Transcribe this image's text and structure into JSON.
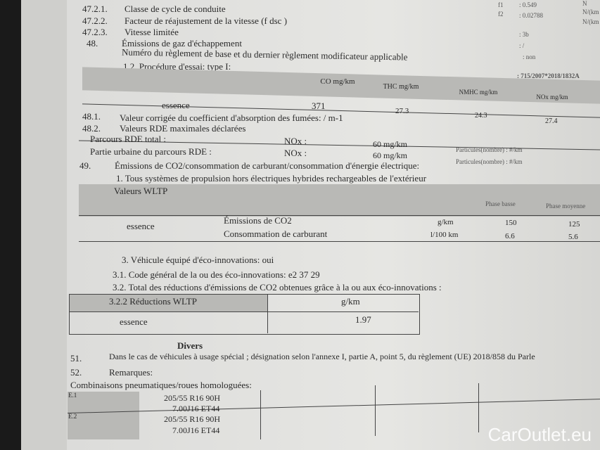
{
  "items": {
    "i4721": {
      "num": "47.2.1.",
      "label": "Classe de cycle de conduite"
    },
    "i4722": {
      "num": "47.2.2.",
      "label": "Facteur de réajustement de la vitesse (f dsc )"
    },
    "i4723": {
      "num": "47.2.3.",
      "label": "Vitesse limitée"
    },
    "i48": {
      "num": "48.",
      "label": "Émissions de gaz d'échappement",
      "sub": "Numéro du règlement de base et du dernier règlement modificateur applicable",
      "proc": "1.2. Procédure d'essai: type I:"
    },
    "i481": {
      "num": "48.1.",
      "label": "Valeur corrigée du coefficient d'absorption des fumées: / m-1"
    },
    "i482": {
      "num": "48.2.",
      "label": "Valeurs RDE maximales déclarées"
    },
    "i49": {
      "num": "49.",
      "label": "Émissions de CO2/consommation de carburant/consommation d'énergie électrique:",
      "sub": "1. Tous systèmes de propulsion hors électriques hybrides rechargeables de l'extérieur"
    },
    "eco": "3. Véhicule équipé d'éco-innovations: oui",
    "eco1": "3.1. Code général de la ou des éco-innovations: e2 37 29",
    "eco2": "3.2. Total des réductions d'émissions de CO2 obtenues grâce à la ou aux éco-innovations :",
    "divers": "Divers",
    "i51": {
      "num": "51.",
      "label": "Dans le cas de véhicules à usage spécial ; désignation selon l'annexe I, partie A, point 5, du règlement (UE) 2018/858 du Parle"
    },
    "i52": {
      "num": "52.",
      "label": "Remarques:"
    },
    "combi": "Combinaisons pneumatiques/roues homologuées:"
  },
  "right": {
    "f1": "f1",
    "f1v": ": 0.549",
    "f2": "f2",
    "f2v": ": 0.02788",
    "n": "N",
    "nkm1": "N/(km",
    "nkm2": "N/(km",
    "v3b": ": 3b",
    "slash": ": /",
    "non": ": non",
    "reg": ": 715/2007*2018/1832A"
  },
  "emissions": {
    "headers": [
      "CO mg/km",
      "THC mg/km",
      "NMHC mg/km",
      "NOx mg/km"
    ],
    "row": "essence",
    "values": [
      "371",
      "27.3",
      "24.3",
      "27.4"
    ]
  },
  "rde": {
    "rows": [
      {
        "label": "Parcours RDE total :",
        "nox": "NOx :",
        "val": "60 mg/km",
        "part": "Particules(nombre) : #/km"
      },
      {
        "label": "Partie urbaine du parcours RDE     :",
        "nox": "NOx :",
        "val": "60 mg/km",
        "part": "Particules(nombre) : #/km"
      }
    ]
  },
  "wltp": {
    "header": "Valeurs WLTP",
    "phase_low": "Phase basse",
    "phase_mid": "Phase moyenne",
    "fuel": "essence",
    "rows": [
      {
        "label": "Émissions de CO2",
        "unit": "g/km",
        "low": "150",
        "mid": "125"
      },
      {
        "label": "Consommation de carburant",
        "unit": "l/100 km",
        "low": "6.6",
        "mid": "5.6"
      }
    ]
  },
  "reduction": {
    "header": "3.2.2 Réductions WLTP",
    "unit": "g/km",
    "fuel": "essence",
    "value": "1.97"
  },
  "tyres": [
    {
      "id": "E.1",
      "tyre": "205/55 R16 90H",
      "rim": "7.00J16 ET44"
    },
    {
      "id": "E.2",
      "tyre": "205/55 R16 90H",
      "rim": "7.00J16 ET44"
    }
  ],
  "watermark": "CarOutlet.eu"
}
